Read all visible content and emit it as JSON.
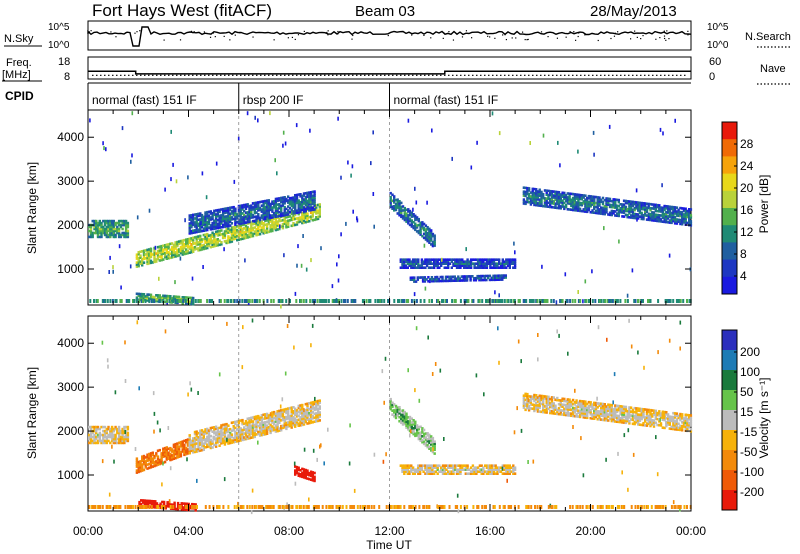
{
  "header": {
    "station": "Fort Hays West (fitACF)",
    "beam": "Beam 03",
    "date": "28/May/2013"
  },
  "summary": {
    "n_sky_label": "N.Sky",
    "n_search_label": "N.Search",
    "freq_label_line1": "Freq.",
    "freq_label_line2": "[MHz]",
    "nave_label": "Nave",
    "cpid_label": "CPID",
    "nsky_ticks": [
      "10^5",
      "10^0"
    ],
    "freq_ticks": [
      "18",
      "8"
    ],
    "nave_ticks": [
      "60",
      "0"
    ],
    "cpid_segments": [
      {
        "label": "normal (fast) 151 IF",
        "start_h": 0,
        "end_h": 6
      },
      {
        "label": "rbsp 200 IF",
        "start_h": 6,
        "end_h": 12
      },
      {
        "label": "normal (fast) 151 IF",
        "start_h": 12,
        "end_h": 24
      }
    ],
    "freq_mhz_steps": [
      {
        "start_h": 0,
        "end_h": 1.9,
        "value": 11.5
      },
      {
        "start_h": 1.9,
        "end_h": 14.2,
        "value": 10.3
      },
      {
        "start_h": 14.2,
        "end_h": 24,
        "value": 11.5
      }
    ],
    "nave_level": 10
  },
  "axes": {
    "x_ticks": [
      "00:00",
      "04:00",
      "08:00",
      "12:00",
      "16:00",
      "20:00",
      "00:00"
    ],
    "xlabel": "Time UT",
    "ylabel": "Slant Range [km]",
    "y_ticks": [
      "1000",
      "2000",
      "3000",
      "4000"
    ]
  },
  "power_colorbar": {
    "label": "Power [dB]",
    "ticks": [
      "28",
      "24",
      "20",
      "16",
      "12",
      "8",
      "4"
    ],
    "colors": [
      "#e8190b",
      "#f06a05",
      "#f6a30a",
      "#e8d81a",
      "#b9d23a",
      "#52b04c",
      "#1f8a75",
      "#1f5fa0",
      "#1d37c2",
      "#1a1ae0"
    ]
  },
  "velocity_colorbar": {
    "label": "Velocity [m s⁻¹]",
    "ticks": [
      "200",
      "100",
      "50",
      "15",
      "-15",
      "-50",
      "-100",
      "-200"
    ],
    "colors": [
      "#2b2fbd",
      "#1d7bb5",
      "#1a7a3c",
      "#66c44a",
      "#bcbcbc",
      "#f6b20a",
      "#f38a0a",
      "#ef5a07",
      "#e81a0a"
    ]
  },
  "chart_data": [
    {
      "type": "heatmap",
      "title": "",
      "xlabel": "",
      "ylabel": "Slant Range [km]",
      "xlim_hours": [
        0,
        24
      ],
      "ylim_km": [
        180,
        4620
      ],
      "colorbar": "Power [dB]",
      "features": [
        {
          "name": "band",
          "t_start": 0.0,
          "t_end": 1.6,
          "range_start": 1950,
          "range_end": 1950,
          "thickness": 380,
          "value": 16
        },
        {
          "name": "band",
          "t_start": 1.9,
          "t_end": 9.2,
          "range_start": 1250,
          "range_end": 2350,
          "thickness": 330,
          "value": 22
        },
        {
          "name": "band",
          "t_start": 4.0,
          "t_end": 9.0,
          "range_start": 2050,
          "range_end": 2600,
          "thickness": 420,
          "value": 10
        },
        {
          "name": "band",
          "t_start": 12.0,
          "t_end": 13.8,
          "range_start": 2600,
          "range_end": 1650,
          "thickness": 320,
          "value": 12
        },
        {
          "name": "band",
          "t_start": 12.4,
          "t_end": 17.0,
          "range_start": 1150,
          "range_end": 1150,
          "thickness": 180,
          "value": 8
        },
        {
          "name": "band",
          "t_start": 12.8,
          "t_end": 16.6,
          "range_start": 800,
          "range_end": 850,
          "thickness": 120,
          "value": 8
        },
        {
          "name": "band",
          "t_start": 17.3,
          "t_end": 24.0,
          "range_start": 2700,
          "range_end": 2200,
          "thickness": 360,
          "value": 11
        },
        {
          "name": "band",
          "t_start": 1.9,
          "t_end": 4.2,
          "range_start": 400,
          "range_end": 300,
          "thickness": 140,
          "value": 18
        }
      ]
    },
    {
      "type": "heatmap",
      "title": "",
      "xlabel": "Time UT",
      "ylabel": "Slant Range [km]",
      "xlim_hours": [
        0,
        24
      ],
      "ylim_km": [
        180,
        4620
      ],
      "colorbar": "Velocity [m s⁻¹]",
      "features": [
        {
          "name": "band",
          "t_start": 0.0,
          "t_end": 1.6,
          "range_start": 1950,
          "range_end": 1950,
          "thickness": 380,
          "value": 0
        },
        {
          "name": "band",
          "t_start": 1.9,
          "t_end": 4.0,
          "range_start": 1250,
          "range_end": 1700,
          "thickness": 330,
          "value": -60
        },
        {
          "name": "band",
          "t_start": 4.0,
          "t_end": 9.2,
          "range_start": 1750,
          "range_end": 2500,
          "thickness": 450,
          "value": 0
        },
        {
          "name": "band",
          "t_start": 8.2,
          "t_end": 9.0,
          "range_start": 1150,
          "range_end": 1000,
          "thickness": 220,
          "value": -200
        },
        {
          "name": "band",
          "t_start": 12.0,
          "t_end": 13.8,
          "range_start": 2600,
          "range_end": 1650,
          "thickness": 320,
          "value": 30
        },
        {
          "name": "band",
          "t_start": 12.4,
          "t_end": 17.0,
          "range_start": 1150,
          "range_end": 1150,
          "thickness": 180,
          "value": 0
        },
        {
          "name": "band",
          "t_start": 17.3,
          "t_end": 24.0,
          "range_start": 2700,
          "range_end": 2200,
          "thickness": 360,
          "value": 0
        },
        {
          "name": "band",
          "t_start": 2.0,
          "t_end": 4.3,
          "range_start": 400,
          "range_end": 300,
          "thickness": 160,
          "value": -200
        }
      ]
    }
  ]
}
